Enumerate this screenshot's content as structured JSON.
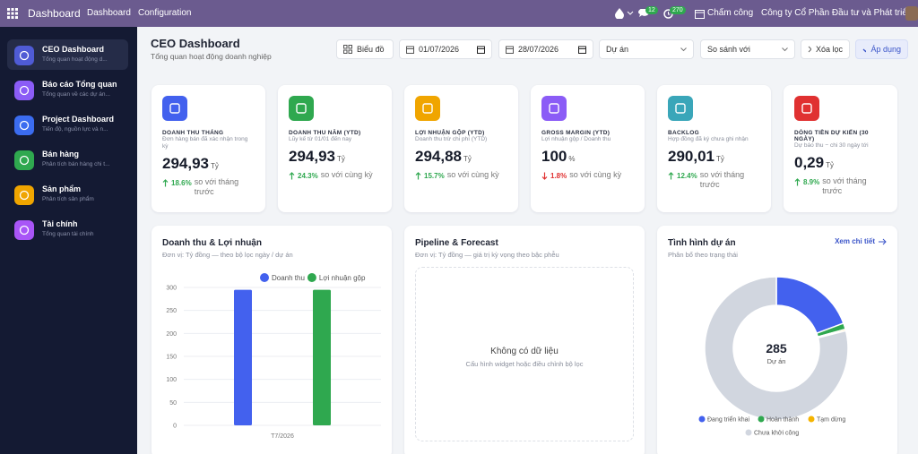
{
  "topbar": {
    "app": "Dashboard",
    "menu": [
      "Dashboard",
      "Configuration"
    ],
    "badges": [
      "12",
      "270"
    ],
    "attendance": "Chấm công",
    "company": "Công ty Cổ Phần Đầu tư và Phát triể..."
  },
  "sidebar": [
    {
      "title": "CEO Dashboard",
      "subtitle": "Tổng quan hoạt động d...",
      "color": "#4f5bd5"
    },
    {
      "title": "Báo cáo Tổng quan",
      "subtitle": "Tổng quan về các dự án...",
      "color": "#8b5cf6"
    },
    {
      "title": "Project Dashboard",
      "subtitle": "Tiến độ, nguồn lực và n...",
      "color": "#3b6cf0"
    },
    {
      "title": "Bán hàng",
      "subtitle": "Phân tích bán hàng chi t...",
      "color": "#2fa84f"
    },
    {
      "title": "Sản phẩm",
      "subtitle": "Phân tích sản phẩm",
      "color": "#f0a500"
    },
    {
      "title": "Tài chính",
      "subtitle": "Tổng quan tài chính",
      "color": "#a855f7"
    }
  ],
  "header": {
    "title": "CEO Dashboard",
    "subtitle": "Tổng quan hoạt động doanh nghiệp"
  },
  "filters": {
    "view": "Biểu đồ",
    "date_from": "01/07/2026",
    "date_to": "28/07/2026",
    "project": "Dự án",
    "compare": "So sánh với",
    "clear": "Xóa lọc",
    "apply": "Áp dụng"
  },
  "kpis": [
    {
      "label": "DOANH THU THÁNG",
      "description": "Đơn hàng bán đã xác nhận trong kỳ",
      "value": "294,93",
      "unit": "Tỷ",
      "change": "18.6%",
      "trend": "up",
      "comparison": "so với tháng trước",
      "color": "#4361ee"
    },
    {
      "label": "DOANH THU NĂM (YTD)",
      "description": "Lũy kế từ 01/01 đến nay",
      "value": "294,93",
      "unit": "Tỷ",
      "change": "24.3%",
      "trend": "up",
      "comparison": "so với cùng kỳ",
      "color": "#2fa84f"
    },
    {
      "label": "LỢI NHUẬN GỘP (YTD)",
      "description": "Doanh thu trừ chi phí (YTD)",
      "value": "294,88",
      "unit": "Tỷ",
      "change": "15.7%",
      "trend": "up",
      "comparison": "so với cùng kỳ",
      "color": "#f0a500"
    },
    {
      "label": "GROSS MARGIN (YTD)",
      "description": "Lợi nhuận gộp / Doanh thu",
      "value": "100",
      "unit": "%",
      "change": "1.8%",
      "trend": "down",
      "comparison": "so với cùng kỳ",
      "color": "#8b5cf6"
    },
    {
      "label": "BACKLOG",
      "description": "Hợp đồng đã ký chưa ghi nhận",
      "value": "290,01",
      "unit": "Tỷ",
      "change": "12.4%",
      "trend": "up",
      "comparison": "so với tháng trước",
      "color": "#3aa6b9"
    },
    {
      "label": "DÒNG TIỀN DỰ KIẾN (30 NGÀY)",
      "description": "Dự báo thu − chi 30 ngày tới",
      "value": "0,29",
      "unit": "Tỷ",
      "change": "8.9%",
      "trend": "up",
      "comparison": "so với tháng trước",
      "color": "#e03131"
    }
  ],
  "pipeline": {
    "title": "Pipeline & Forecast",
    "subtitle": "Đơn vị: Tỷ đồng — giá trị kỳ vọng theo bậc phễu",
    "empty_title": "Không có dữ liệu",
    "empty_hint": "Cấu hình widget hoặc điều chỉnh bộ lọc"
  },
  "chart_data": [
    {
      "type": "bar",
      "title": "Doanh thu & Lợi nhuận",
      "subtitle": "Đơn vị: Tỷ đồng — theo bộ lọc ngày / dự án",
      "categories": [
        "T7/2026"
      ],
      "series": [
        {
          "name": "Doanh thu",
          "color": "#4361ee",
          "values": [
            294.93
          ]
        },
        {
          "name": "Lợi nhuận gộp",
          "color": "#2fa84f",
          "values": [
            294.88
          ]
        }
      ],
      "ylim": [
        0,
        300
      ],
      "yticks": [
        0,
        50,
        100,
        150,
        200,
        250,
        300
      ],
      "grid": true
    },
    {
      "type": "pie",
      "title": "Tình hình dự án",
      "link": "Xem chi tiết",
      "subtitle": "Phân bổ theo trạng thái",
      "total": "285",
      "center_label": "Dự án",
      "categories": [
        "Đang triển khai",
        "Hoàn thành",
        "Tạm dừng",
        "Chưa khởi công"
      ],
      "values": [
        55,
        4,
        1,
        225
      ],
      "colors": [
        "#4361ee",
        "#2fa84f",
        "#f5b400",
        "#d1d6df"
      ]
    }
  ]
}
